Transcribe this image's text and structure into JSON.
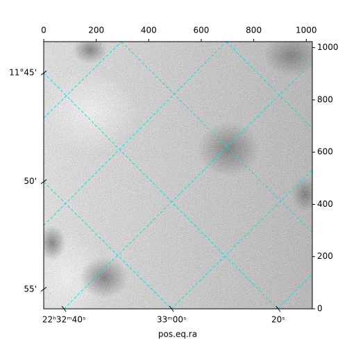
{
  "chart_data": {
    "type": "image",
    "xlabel": "pos.eq.ra",
    "xlim": [
      0,
      1023
    ],
    "ylim": [
      0,
      1023
    ],
    "xticks": [
      0,
      200,
      400,
      600,
      800,
      1000
    ],
    "yticks": [
      0,
      200,
      400,
      600,
      800,
      1000
    ],
    "world_xticks": [
      {
        "value": 77,
        "label": "22ʰ32ᵐ40ˢ"
      },
      {
        "value": 487,
        "label": "33ᵐ00ˢ"
      },
      {
        "value": 893,
        "label": "20ˢ"
      }
    ],
    "world_yticks": [
      {
        "value": 903,
        "label": "11°45'"
      },
      {
        "value": 487,
        "label": "50'"
      },
      {
        "value": 75,
        "label": "55'"
      }
    ],
    "grid_color": "#00e5e5"
  }
}
